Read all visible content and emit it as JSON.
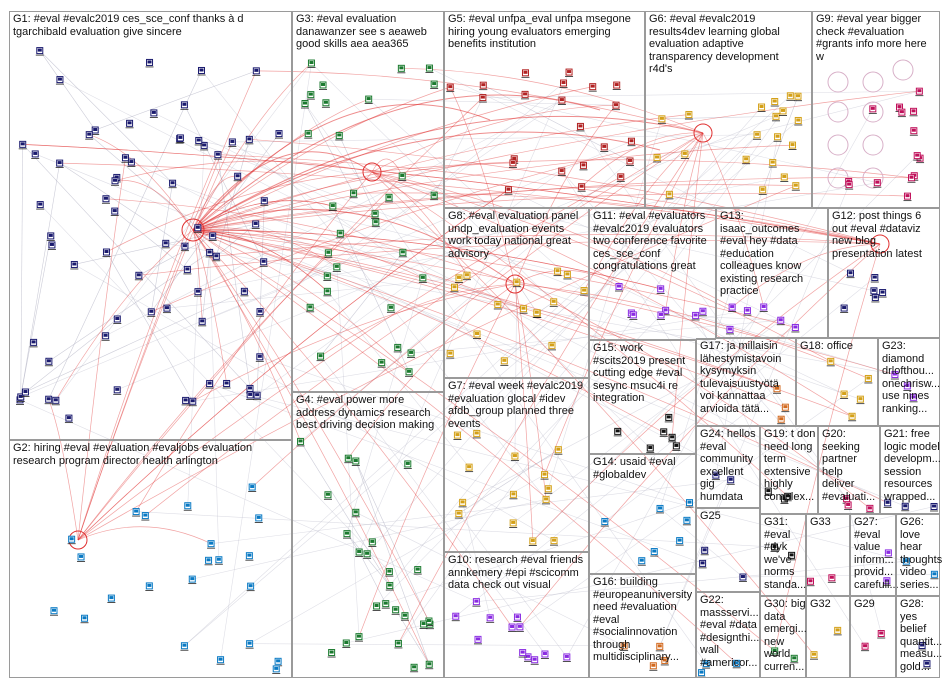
{
  "groups": [
    {
      "id": "G1",
      "label": "G1: #eval #evalc2019 ces_sce_conf thanks à d\ntgarchibald evaluation give sincere"
    },
    {
      "id": "G2",
      "label": "G2: hiring #eval #evaluation #evaljobs evaluation\nresearch program director health arlington"
    },
    {
      "id": "G3",
      "label": "G3: #eval evaluation\ndanawanzer see s aeaweb\ngood skills aea aea365"
    },
    {
      "id": "G4",
      "label": "G4: #eval power more\naddress dynamics research\nbest driving decision making"
    },
    {
      "id": "G5",
      "label": "G5: #eval unfpa_eval unfpa msegone\nhiring young evaluators emerging\nbenefits institution"
    },
    {
      "id": "G6",
      "label": "G6: #eval #evalc2019\nresults4dev learning global\nevaluation adaptive\ntransparency development\nr4d's"
    },
    {
      "id": "G7",
      "label": "G7: #eval week #evalc2019\n#evaluation glocal #idev\nafdb_group planned three\nevents"
    },
    {
      "id": "G8",
      "label": "G8: #eval evaluation panel\nundp_evaluation events\nwork today national great\nadvisory"
    },
    {
      "id": "G9",
      "label": "G9: #eval year bigger\ncheck #evaluation\n#grants info more here\nw"
    },
    {
      "id": "G10",
      "label": "G10: research #eval friends\nannkemery #epi #scicomm\ndata check out visual"
    },
    {
      "id": "G11",
      "label": "G11: #eval #evaluators\n#evalc2019 evaluators\ntwo conference favorite\nces_sce_conf\ncongratulations great"
    },
    {
      "id": "G12",
      "label": "G12: post things 6\nout #eval #dataviz\nnew blog\npresentation latest"
    },
    {
      "id": "G13",
      "label": "G13:\nisaac_outcomes\n#eval hey #data\n#education\ncolleagues know\nexisting research\npractice"
    },
    {
      "id": "G14",
      "label": "G14: usaid #eval\n#globaldev"
    },
    {
      "id": "G15",
      "label": "G15: work\n#scits2019 present\ncutting edge #eval\nsesync msuc4i re\nintegration"
    },
    {
      "id": "G16",
      "label": "G16: building\n#europeanuniversity\nneed #evaluation\n#eval\n#socialinnovation\nthrough\nmultidisciplinary..."
    },
    {
      "id": "G17",
      "label": "G17: ja millaisin\nlähestymistavoin\nkysymyksin\ntulevaisuustyötä\nvoi kannattaa\narvioida tätä..."
    },
    {
      "id": "G18",
      "label": "G18: office"
    },
    {
      "id": "G19",
      "label": "G19: t don\nneed long\nterm\nextensive\nhighly\ncomplex..."
    },
    {
      "id": "G20",
      "label": "G20:\nseeking\npartner\nhelp\ndeliver\n#evaluati..."
    },
    {
      "id": "G21",
      "label": "G21: free\nlogic model\ndevelopm...\nsession\nresources\nwrapped..."
    },
    {
      "id": "G22",
      "label": "G22:\nmassservi...\n#eval #data\n#designthi...\nwall\n#americor..."
    },
    {
      "id": "G23",
      "label": "G23:\ndiamond\ndrlofthou...\nonechrisw...\nuse nines\nranking..."
    },
    {
      "id": "G24",
      "label": "G24: hellos\n#eval\ncommunity\nexcellent\ngig humdata"
    },
    {
      "id": "G25",
      "label": "G25"
    },
    {
      "id": "G26",
      "label": "G26:\nlove\nhear\nthoughts\nvideo\nseries..."
    },
    {
      "id": "G27",
      "label": "G27:\n#eval\nvalue\ninform...\nprovid...\ncarefull..."
    },
    {
      "id": "G28",
      "label": "G28:\nyes\nbelief\nquantit...\nmeasu...\ngold..."
    },
    {
      "id": "G29",
      "label": "G29"
    },
    {
      "id": "G30",
      "label": "G30: big\ndata\nemergi...\nnew\nworld\ncurren..."
    },
    {
      "id": "G31",
      "label": "G31:\n#eval\n#dyk\nwe've\nnorms\nstanda..."
    },
    {
      "id": "G32",
      "label": "G32"
    },
    {
      "id": "G33",
      "label": "G33"
    }
  ],
  "colors": {
    "border": "#9a9a9a",
    "edge": "#b8b8c8",
    "edge_hub": "#e03030",
    "hub_circle": "#e03030",
    "node_palette": [
      "#1a1a6e",
      "#c0105a",
      "#1a7a2e",
      "#d4a017",
      "#0a7ac4",
      "#8a2be2",
      "#d2691e",
      "#111111",
      "#2e8b57",
      "#b22222"
    ]
  }
}
